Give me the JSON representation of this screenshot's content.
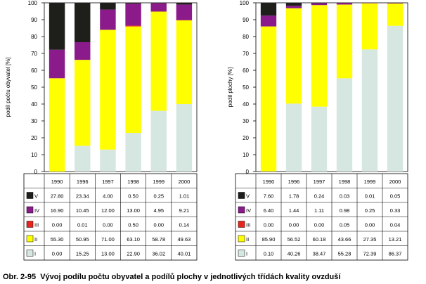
{
  "caption": {
    "number": "Obr. 2-95",
    "text": "Vývoj podílu počtu obyvatel a podílů plochy v jednotlivých třídách kvality ovzduší"
  },
  "colors": {
    "I": "#d6e6e0",
    "II": "#ffff00",
    "III": "#e8241c",
    "IV": "#8b1a8b",
    "V": "#1e1e1a"
  },
  "chart_data": [
    {
      "type": "bar",
      "stacked": true,
      "ylabel": "podíl počtu obyvatel [%]",
      "ylim": [
        0,
        100
      ],
      "yticks": [
        "0",
        "10",
        "20",
        "30",
        "40",
        "50",
        "60",
        "70",
        "80",
        "90",
        "100"
      ],
      "categories": [
        "1990",
        "1996",
        "1997",
        "1998",
        "1999",
        "2000"
      ],
      "series": [
        {
          "name": "V",
          "values": [
            27.8,
            23.34,
            4.0,
            0.5,
            0.25,
            1.01
          ],
          "labels": [
            "27.80",
            "23.34",
            "4.00",
            "0.50",
            "0.25",
            "1.01"
          ]
        },
        {
          "name": "IV",
          "values": [
            16.9,
            10.45,
            12.0,
            13.0,
            4.95,
            9.21
          ],
          "labels": [
            "16.90",
            "10.45",
            "12.00",
            "13.00",
            "4.95",
            "9.21"
          ]
        },
        {
          "name": "III",
          "values": [
            0.0,
            0.01,
            0.0,
            0.5,
            0.0,
            0.14
          ],
          "labels": [
            "0.00",
            "0.01",
            "0.00",
            "0.50",
            "0.00",
            "0.14"
          ]
        },
        {
          "name": "II",
          "values": [
            55.3,
            50.95,
            71.0,
            63.1,
            58.78,
            49.63
          ],
          "labels": [
            "55.30",
            "50.95",
            "71.00",
            "63.10",
            "58.78",
            "49.63"
          ]
        },
        {
          "name": "I",
          "values": [
            0.0,
            15.25,
            13.0,
            22.9,
            36.02,
            40.01
          ],
          "labels": [
            "0.00",
            "15.25",
            "13.00",
            "22.90",
            "36.02",
            "40.01"
          ]
        }
      ]
    },
    {
      "type": "bar",
      "stacked": true,
      "ylabel": "podíl plochy [%]",
      "ylim": [
        0,
        100
      ],
      "yticks": [
        "0",
        "10",
        "20",
        "30",
        "40",
        "50",
        "60",
        "70",
        "80",
        "90",
        "100"
      ],
      "categories": [
        "1990",
        "1996",
        "1997",
        "1998",
        "1999",
        "2000"
      ],
      "series": [
        {
          "name": "V",
          "values": [
            7.6,
            1.78,
            0.24,
            0.03,
            0.01,
            0.05
          ],
          "labels": [
            "7.60",
            "1.78",
            "0.24",
            "0.03",
            "0.01",
            "0.05"
          ]
        },
        {
          "name": "IV",
          "values": [
            6.4,
            1.44,
            1.11,
            0.98,
            0.25,
            0.33
          ],
          "labels": [
            "6.40",
            "1.44",
            "1.11",
            "0.98",
            "0.25",
            "0.33"
          ]
        },
        {
          "name": "III",
          "values": [
            0.0,
            0.0,
            0.0,
            0.05,
            0.0,
            0.04
          ],
          "labels": [
            "0.00",
            "0.00",
            "0.00",
            "0.05",
            "0.00",
            "0.04"
          ]
        },
        {
          "name": "II",
          "values": [
            85.9,
            56.52,
            60.18,
            43.66,
            27.35,
            13.21
          ],
          "labels": [
            "85.90",
            "56.52",
            "60.18",
            "43.66",
            "27.35",
            "13.21"
          ]
        },
        {
          "name": "I",
          "values": [
            0.1,
            40.26,
            38.47,
            55.28,
            72.39,
            86.37
          ],
          "labels": [
            "0.10",
            "40.26",
            "38.47",
            "55.28",
            "72.39",
            "86.37"
          ]
        }
      ]
    }
  ]
}
